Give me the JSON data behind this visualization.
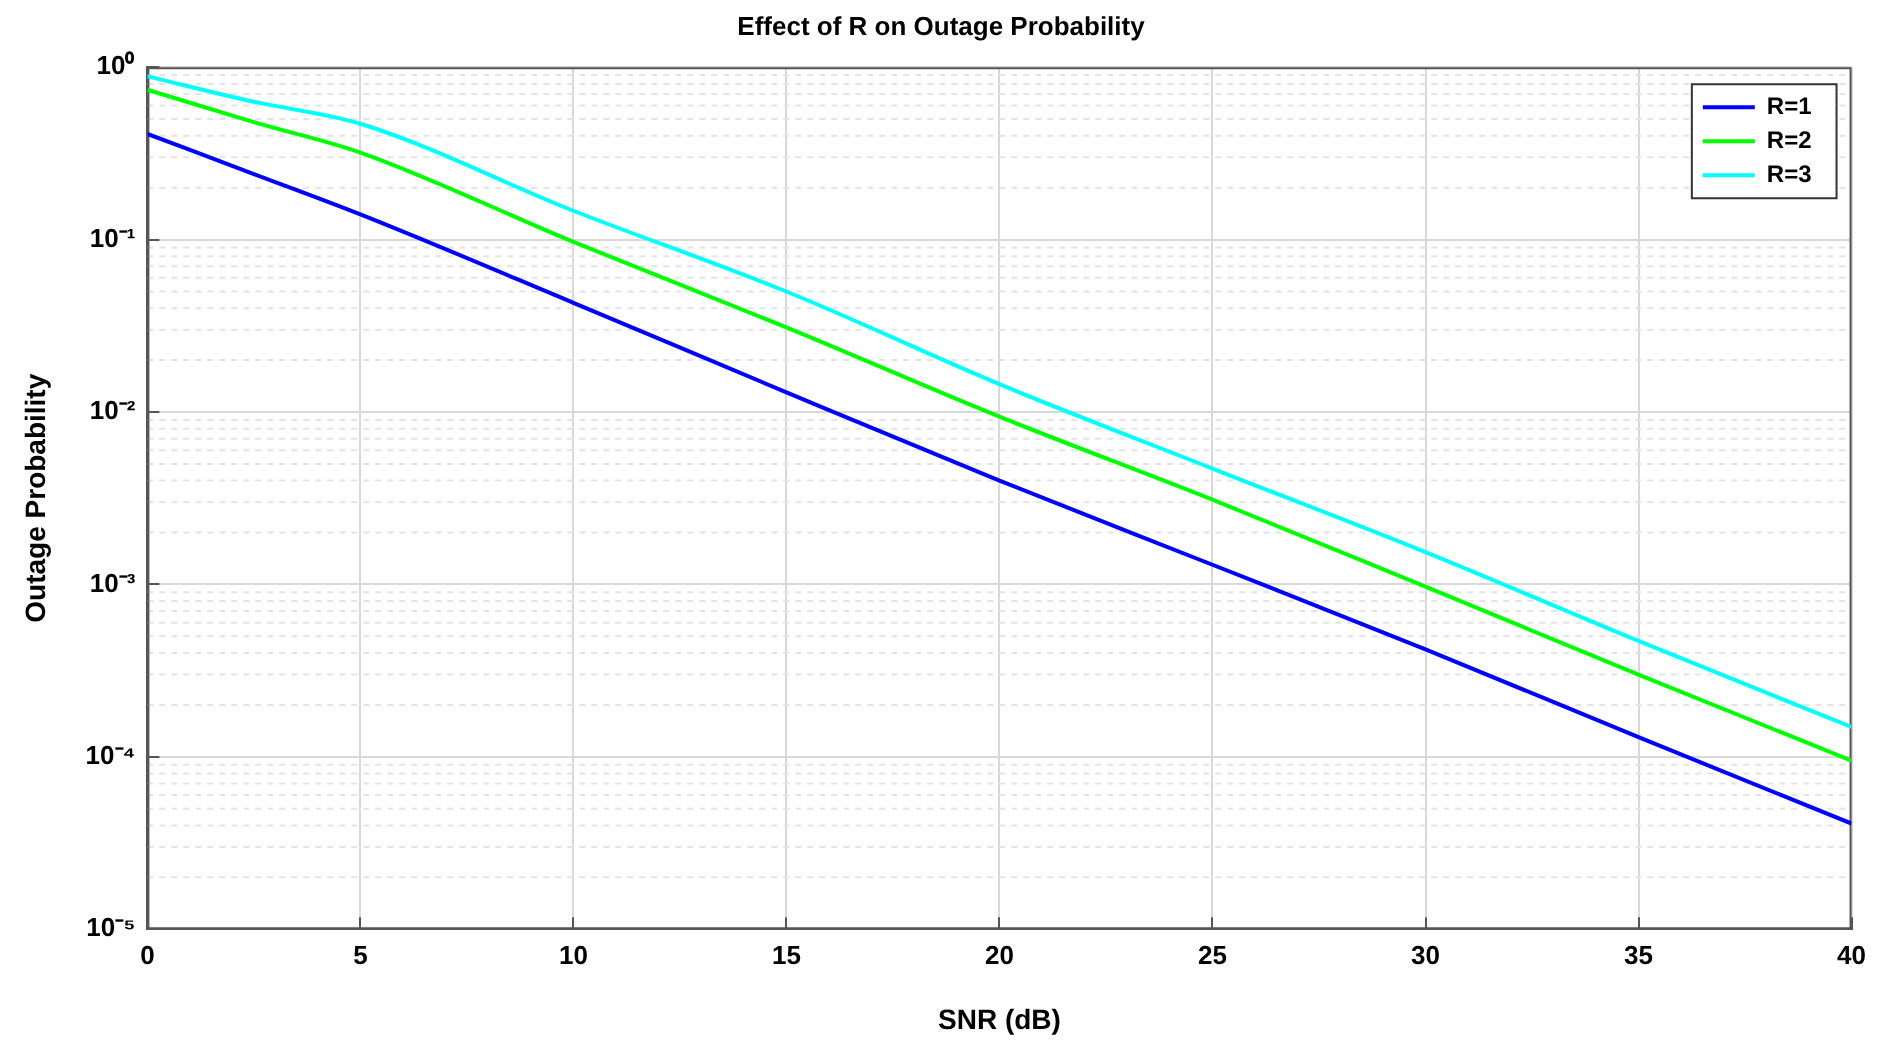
{
  "chart_data": {
    "type": "line",
    "title": "Effect of R on Outage Probability",
    "xlabel": "SNR (dB)",
    "ylabel": "Outage Probability",
    "x": [
      0,
      2.5,
      5,
      10,
      15,
      20,
      25,
      30,
      35,
      40
    ],
    "series": [
      {
        "name": "R=1",
        "color": "#0000ff",
        "values": [
          0.41,
          0.24,
          0.14,
          0.043,
          0.013,
          0.004,
          0.0013,
          0.00042,
          0.00013,
          4.1e-05
        ]
      },
      {
        "name": "R=2",
        "color": "#00ff00",
        "values": [
          0.74,
          0.48,
          0.32,
          0.097,
          0.031,
          0.0094,
          0.0031,
          0.00097,
          0.0003,
          9.5e-05
        ]
      },
      {
        "name": "R=3",
        "color": "#00ffff",
        "values": [
          0.885,
          0.63,
          0.47,
          0.147,
          0.05,
          0.0145,
          0.0047,
          0.00154,
          0.00047,
          0.000149
        ]
      }
    ],
    "log": "y",
    "xlim": [
      0,
      40
    ],
    "xticks": [
      0,
      5,
      10,
      15,
      20,
      25,
      30,
      35,
      40
    ],
    "ylim": [
      1e-05,
      1
    ],
    "yticks": [
      {
        "value": 1e-05,
        "label": "10⁻⁵"
      },
      {
        "value": 0.0001,
        "label": "10⁻⁴"
      },
      {
        "value": 0.001,
        "label": "10⁻³"
      },
      {
        "value": 0.01,
        "label": "10⁻²"
      },
      {
        "value": 0.1,
        "label": "10⁻¹"
      },
      {
        "value": 1,
        "label": "10⁰"
      }
    ],
    "grid": true,
    "legend": "top right",
    "marker": "none",
    "line_style": "solid"
  }
}
